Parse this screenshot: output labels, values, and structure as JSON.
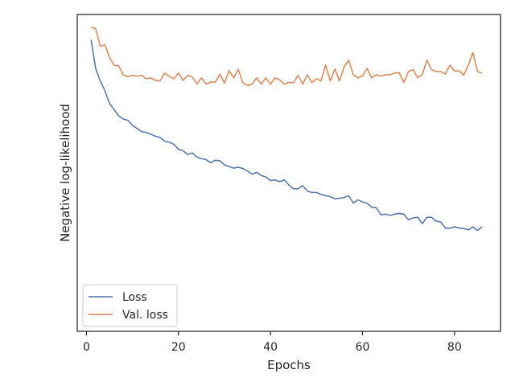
{
  "chart_data": {
    "type": "line",
    "title": "",
    "xlabel": "Epochs",
    "ylabel": "Negative log-likelihood",
    "xlim": [
      -2,
      90
    ],
    "ylim": [
      0,
      1
    ],
    "y_ticks_shown": false,
    "x_ticks": [
      0,
      20,
      40,
      60,
      80
    ],
    "x_tick_labels": [
      "0",
      "20",
      "40",
      "60",
      "80"
    ],
    "grid": false,
    "legend_position": "lower-left",
    "series": [
      {
        "name": "Loss",
        "color": "#4c72b0",
        "x": [
          1,
          2,
          3,
          4,
          5,
          6,
          7,
          8,
          9,
          10,
          11,
          12,
          13,
          14,
          15,
          16,
          17,
          18,
          19,
          20,
          21,
          22,
          23,
          24,
          25,
          26,
          27,
          28,
          29,
          30,
          31,
          32,
          33,
          34,
          35,
          36,
          37,
          38,
          39,
          40,
          41,
          42,
          43,
          44,
          45,
          46,
          47,
          48,
          49,
          50,
          51,
          52,
          53,
          54,
          55,
          56,
          57,
          58,
          59,
          60,
          61,
          62,
          63,
          64,
          65,
          66,
          67,
          68,
          69,
          70,
          71,
          72,
          73,
          74,
          75,
          76,
          77,
          78,
          79,
          80,
          81,
          82,
          83,
          84,
          85,
          86
        ],
        "values": [
          0.92,
          0.83,
          0.79,
          0.76,
          0.72,
          0.7,
          0.68,
          0.67,
          0.666,
          0.65,
          0.64,
          0.63,
          0.628,
          0.622,
          0.616,
          0.612,
          0.6,
          0.597,
          0.59,
          0.575,
          0.57,
          0.558,
          0.563,
          0.55,
          0.545,
          0.542,
          0.532,
          0.54,
          0.538,
          0.525,
          0.52,
          0.515,
          0.518,
          0.514,
          0.506,
          0.496,
          0.502,
          0.492,
          0.487,
          0.476,
          0.478,
          0.472,
          0.478,
          0.462,
          0.45,
          0.45,
          0.46,
          0.443,
          0.438,
          0.438,
          0.432,
          0.428,
          0.425,
          0.418,
          0.42,
          0.422,
          0.428,
          0.405,
          0.415,
          0.408,
          0.404,
          0.392,
          0.39,
          0.368,
          0.37,
          0.366,
          0.37,
          0.372,
          0.37,
          0.352,
          0.358,
          0.36,
          0.34,
          0.36,
          0.36,
          0.348,
          0.345,
          0.326,
          0.325,
          0.33,
          0.326,
          0.325,
          0.32,
          0.33,
          0.318,
          0.33
        ]
      },
      {
        "name": "Val. loss",
        "color": "#dd8452",
        "x": [
          1,
          2,
          3,
          4,
          5,
          6,
          7,
          8,
          9,
          10,
          11,
          12,
          13,
          14,
          15,
          16,
          17,
          18,
          19,
          20,
          21,
          22,
          23,
          24,
          25,
          26,
          27,
          28,
          29,
          30,
          31,
          32,
          33,
          34,
          35,
          36,
          37,
          38,
          39,
          40,
          41,
          42,
          43,
          44,
          45,
          46,
          47,
          48,
          49,
          50,
          51,
          52,
          53,
          54,
          55,
          56,
          57,
          58,
          59,
          60,
          61,
          62,
          63,
          64,
          65,
          66,
          67,
          68,
          69,
          70,
          71,
          72,
          73,
          74,
          75,
          76,
          77,
          78,
          79,
          80,
          81,
          82,
          83,
          84,
          85,
          86
        ],
        "values": [
          0.96,
          0.955,
          0.9,
          0.905,
          0.865,
          0.84,
          0.838,
          0.81,
          0.803,
          0.808,
          0.805,
          0.808,
          0.797,
          0.8,
          0.792,
          0.79,
          0.815,
          0.804,
          0.797,
          0.815,
          0.792,
          0.808,
          0.803,
          0.781,
          0.8,
          0.78,
          0.787,
          0.786,
          0.812,
          0.783,
          0.823,
          0.8,
          0.827,
          0.785,
          0.776,
          0.78,
          0.8,
          0.78,
          0.8,
          0.78,
          0.8,
          0.793,
          0.78,
          0.786,
          0.784,
          0.808,
          0.78,
          0.81,
          0.785,
          0.797,
          0.79,
          0.84,
          0.79,
          0.828,
          0.79,
          0.835,
          0.855,
          0.81,
          0.8,
          0.806,
          0.83,
          0.8,
          0.81,
          0.805,
          0.81,
          0.81,
          0.815,
          0.816,
          0.785,
          0.82,
          0.826,
          0.8,
          0.81,
          0.856,
          0.826,
          0.82,
          0.82,
          0.812,
          0.84,
          0.822,
          0.822,
          0.808,
          0.84,
          0.88,
          0.82,
          0.815
        ]
      }
    ]
  }
}
